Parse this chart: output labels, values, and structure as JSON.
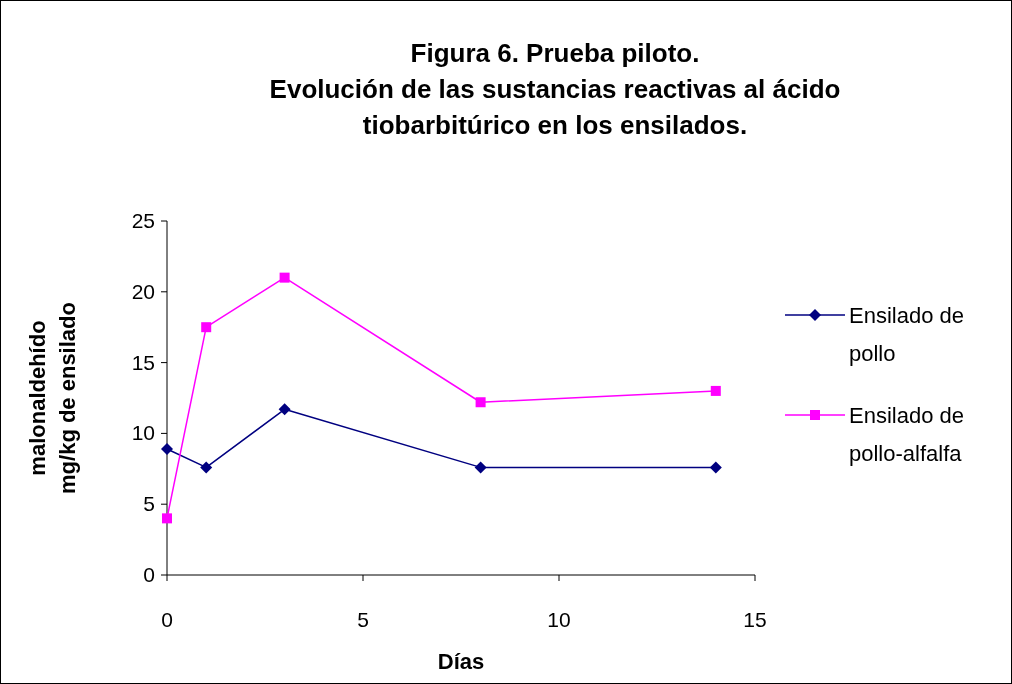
{
  "chart_data": {
    "type": "line",
    "title": "Figura 6. Prueba piloto.\nEvolución de las sustancias reactivas al ácido tiobarbitúrico en los ensilados.",
    "xlabel": "Días",
    "ylabel": "malonaldehído\nmg/kg de ensilado",
    "x": [
      0,
      1,
      3,
      8,
      14
    ],
    "series": [
      {
        "name": "Ensilado de pollo",
        "color": "#000080",
        "marker": "diamond",
        "values": [
          8.9,
          7.6,
          11.7,
          7.6,
          7.6
        ]
      },
      {
        "name": "Ensilado de pollo-alfalfa",
        "color": "#ff00ff",
        "marker": "square",
        "values": [
          4.0,
          17.5,
          21.0,
          12.2,
          13.0
        ]
      }
    ],
    "xlim": [
      0,
      15
    ],
    "xticks": [
      0,
      5,
      10,
      15
    ],
    "ylim": [
      0,
      25
    ],
    "yticks": [
      0,
      5,
      10,
      15,
      20,
      25
    ],
    "grid": false,
    "legend": "right"
  }
}
